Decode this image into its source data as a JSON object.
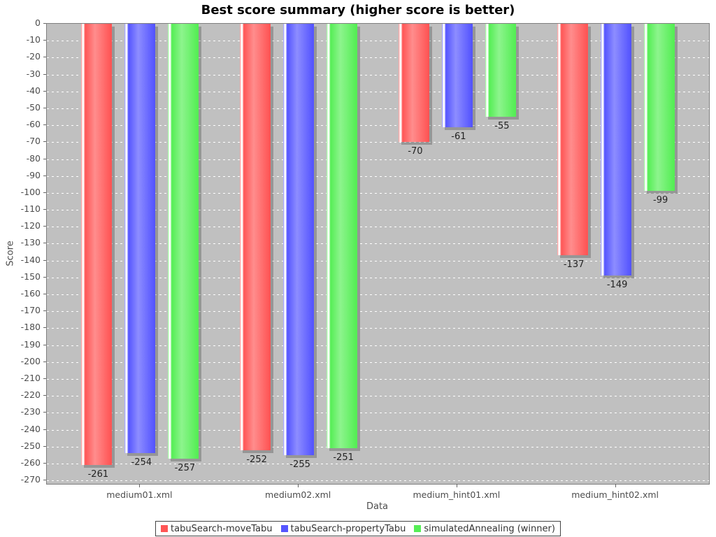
{
  "chart_data": {
    "type": "bar",
    "title": "Best score summary (higher score is better)",
    "xlabel": "Data",
    "ylabel": "Score",
    "categories": [
      "medium01.xml",
      "medium02.xml",
      "medium_hint01.xml",
      "medium_hint02.xml"
    ],
    "series": [
      {
        "name": "tabuSearch-moveTabu",
        "color": "#ff5555",
        "values": [
          -261,
          -252,
          -70,
          -137
        ]
      },
      {
        "name": "tabuSearch-propertyTabu",
        "color": "#5555ff",
        "values": [
          -254,
          -255,
          -61,
          -149
        ]
      },
      {
        "name": "simulatedAnnealing (winner)",
        "color": "#55ee55",
        "values": [
          -257,
          -251,
          -55,
          -99
        ]
      }
    ],
    "ylim": [
      -272,
      0
    ],
    "ytick_step": 10,
    "ytick_min": 0,
    "ytick_max": 270,
    "grid": true,
    "legend_position": "bottom",
    "plot_background": "#c0c0c0",
    "gridline_color": "#ffffff"
  }
}
